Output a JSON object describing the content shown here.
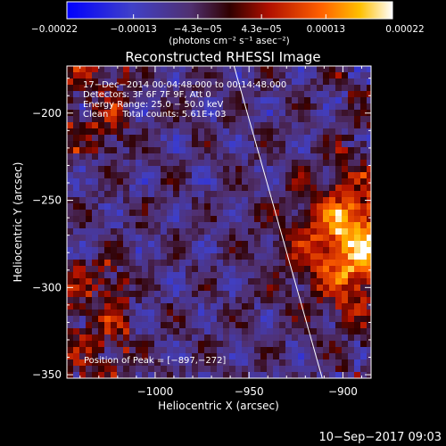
{
  "chart_data": {
    "type": "heatmap",
    "title": "Reconstructed RHESSI Image",
    "xlabel": "Heliocentric X (arcsec)",
    "ylabel": "Heliocentric Y (arcsec)",
    "xlim": [
      -1047,
      -885
    ],
    "ylim": [
      -352,
      -173
    ],
    "x_ticks": [
      -1000,
      -950,
      -900
    ],
    "x_tick_labels": [
      "−1000",
      "−950",
      "−900"
    ],
    "y_ticks": [
      -350,
      -300,
      -250,
      -200
    ],
    "y_tick_labels": [
      "−350",
      "−300",
      "−250",
      "−200"
    ],
    "colorbar": {
      "min": -0.00022,
      "max": 0.00022,
      "tick_values": [
        -0.00022,
        -0.00013,
        -4.3e-05,
        4.3e-05,
        0.00013,
        0.00022
      ],
      "tick_labels": [
        "−0.00022",
        "−0.00013",
        "−4.3e−05",
        "4.3e−05",
        "0.00013",
        "0.00022"
      ],
      "unit_label": "(photons cm⁻² s⁻¹ asec⁻²)"
    },
    "annotations": [
      "17−Dec−2014 00:04:48.000 to 00:14:48.000",
      "Detectors: 3F 6F 7F 9F, Att 0",
      "Energy Range: 25.0 − 50.0 keV",
      "Clean     Total counts: 5.61E+03"
    ],
    "peak_label": "Position of Peak = [−897,−272]",
    "peak": [
      -897,
      -272
    ],
    "limb_line": [
      [
        -958,
        -173
      ],
      [
        -911,
        -352
      ]
    ],
    "grid": false,
    "colors": {
      "background": "#000000",
      "axes": "#ffffff",
      "limb": "#ffffff"
    }
  },
  "footer_date": "10−Sep−2017 09:03"
}
